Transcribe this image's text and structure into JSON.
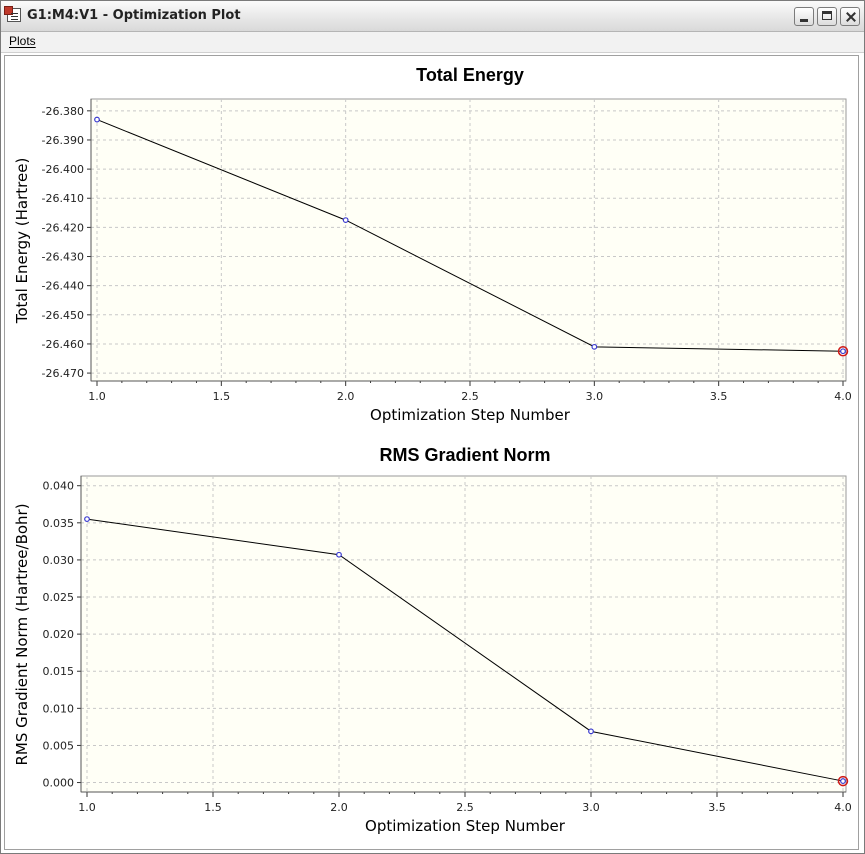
{
  "window": {
    "title": "G1:M4:V1 - Optimization Plot"
  },
  "menu": {
    "plots_label": "Plots"
  },
  "icons": {
    "app": "app-document-icon",
    "minimize": "minimize-icon",
    "maximize": "maximize-icon",
    "close": "close-icon"
  },
  "colors": {
    "plot_background": "#fffff6",
    "grid": "#c8c8c8",
    "line": "#000000",
    "marker": "#3a3ad0",
    "final_marker": "#d01818"
  },
  "chart_data": [
    {
      "type": "line",
      "title": "Total Energy",
      "xlabel": "Optimization Step Number",
      "ylabel": "Total Energy (Hartree)",
      "x": [
        1.0,
        2.0,
        3.0,
        4.0
      ],
      "series": [
        {
          "values": [
            -26.383,
            -26.4175,
            -26.461,
            -26.4625
          ]
        }
      ],
      "xlim": [
        1.0,
        4.0
      ],
      "ylim": [
        -26.471,
        -26.378
      ],
      "xticks": [
        "1.0",
        "1.5",
        "2.0",
        "2.5",
        "3.0",
        "3.5",
        "4.0"
      ],
      "yticks": [
        "-26.380",
        "-26.390",
        "-26.400",
        "-26.410",
        "-26.420",
        "-26.430",
        "-26.440",
        "-26.450",
        "-26.460",
        "-26.470"
      ],
      "grid": true,
      "highlight_last_point": true
    },
    {
      "type": "line",
      "title": "RMS Gradient Norm",
      "xlabel": "Optimization Step Number",
      "ylabel": "RMS Gradient Norm (Hartree/Bohr)",
      "x": [
        1.0,
        2.0,
        3.0,
        4.0
      ],
      "series": [
        {
          "values": [
            0.0355,
            0.0307,
            0.0069,
            0.0002
          ]
        }
      ],
      "xlim": [
        1.0,
        4.0
      ],
      "ylim": [
        -0.0006,
        0.0405
      ],
      "xticks": [
        "1.0",
        "1.5",
        "2.0",
        "2.5",
        "3.0",
        "3.5",
        "4.0"
      ],
      "yticks": [
        "0.040",
        "0.035",
        "0.030",
        "0.025",
        "0.020",
        "0.015",
        "0.010",
        "0.005",
        "0.000"
      ],
      "grid": true,
      "highlight_last_point": true
    }
  ]
}
